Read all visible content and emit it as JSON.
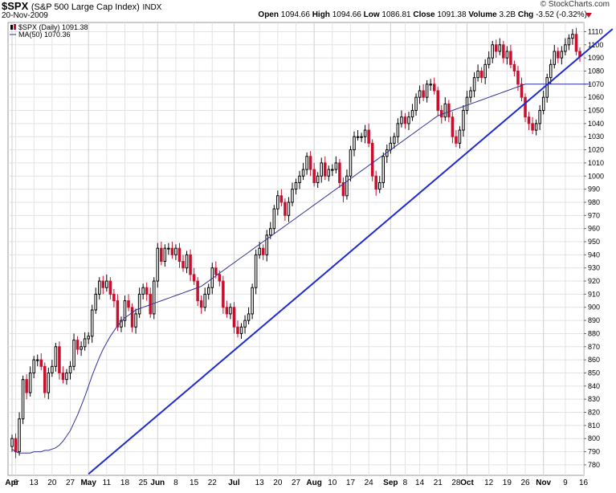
{
  "header": {
    "symbol": "$SPX",
    "description": "(S&P 500 Large Cap Index)",
    "exchange": "INDX",
    "date": "20-Nov-2009",
    "brand": "© StockCharts.com",
    "open_label": "Open",
    "open": "1094.66",
    "high_label": "High",
    "high": "1094.66",
    "low_label": "Low",
    "low": "1086.81",
    "close_label": "Close",
    "close": "1091.38",
    "volume_label": "Volume",
    "volume": "3.2B",
    "chg_label": "Chg",
    "chg": "-3.52 (-0.32%)"
  },
  "colors": {
    "up": "#000000",
    "down": "#c8102e",
    "ma": "#333399",
    "trend": "#1f2bd1",
    "grid": "#e3e3e3"
  },
  "chart_data": {
    "type": "candlestick",
    "legend": [
      {
        "label": "$SPX (Daily) 1091.38",
        "icon": "candle-icon"
      },
      {
        "label": "MA(50) 1070.36",
        "icon": "line-icon"
      }
    ],
    "ylim": [
      772,
      1117
    ],
    "y_ticks": [
      780,
      790,
      800,
      810,
      820,
      830,
      840,
      850,
      860,
      870,
      880,
      890,
      900,
      910,
      920,
      930,
      940,
      950,
      960,
      970,
      980,
      990,
      1000,
      1010,
      1020,
      1030,
      1040,
      1050,
      1060,
      1070,
      1080,
      1090,
      1100,
      1110
    ],
    "x_ticks": [
      {
        "label": "Apr",
        "i": 0,
        "bold": true
      },
      {
        "label": "6",
        "i": 1
      },
      {
        "label": "13",
        "i": 6
      },
      {
        "label": "20",
        "i": 11
      },
      {
        "label": "27",
        "i": 16
      },
      {
        "label": "May",
        "i": 21,
        "bold": true
      },
      {
        "label": "11",
        "i": 26
      },
      {
        "label": "18",
        "i": 31
      },
      {
        "label": "25",
        "i": 36
      },
      {
        "label": "Jun",
        "i": 40,
        "bold": true
      },
      {
        "label": "8",
        "i": 45
      },
      {
        "label": "15",
        "i": 50
      },
      {
        "label": "22",
        "i": 55
      },
      {
        "label": "Jul",
        "i": 61,
        "bold": true
      },
      {
        "label": "13",
        "i": 68
      },
      {
        "label": "20",
        "i": 73
      },
      {
        "label": "27",
        "i": 78
      },
      {
        "label": "Aug",
        "i": 83,
        "bold": true
      },
      {
        "label": "10",
        "i": 88
      },
      {
        "label": "17",
        "i": 93
      },
      {
        "label": "24",
        "i": 98
      },
      {
        "label": "Sep",
        "i": 104,
        "bold": true
      },
      {
        "label": "8",
        "i": 108
      },
      {
        "label": "14",
        "i": 112
      },
      {
        "label": "21",
        "i": 117
      },
      {
        "label": "28",
        "i": 122
      },
      {
        "label": "Oct",
        "i": 125,
        "bold": true
      },
      {
        "label": "12",
        "i": 131
      },
      {
        "label": "19",
        "i": 136
      },
      {
        "label": "26",
        "i": 141
      },
      {
        "label": "Nov",
        "i": 146,
        "bold": true
      },
      {
        "label": "9",
        "i": 152
      },
      {
        "label": "16",
        "i": 157
      }
    ],
    "close": [
      800,
      790,
      815,
      845,
      835,
      850,
      860,
      860,
      855,
      835,
      850,
      855,
      870,
      850,
      845,
      850,
      855,
      875,
      868,
      870,
      876,
      878,
      898,
      910,
      920,
      915,
      920,
      910,
      905,
      885,
      890,
      905,
      900,
      885,
      895,
      910,
      915,
      910,
      895,
      920,
      945,
      935,
      945,
      945,
      940,
      945,
      935,
      930,
      940,
      925,
      920,
      905,
      900,
      910,
      915,
      930,
      925,
      920,
      900,
      895,
      900,
      885,
      880,
      885,
      890,
      895,
      915,
      940,
      945,
      940,
      955,
      960,
      975,
      985,
      980,
      970,
      980,
      990,
      995,
      1000,
      1005,
      1015,
      1005,
      995,
      1000,
      1010,
      1000,
      1005,
      1005,
      1010,
      995,
      985,
      1000,
      1020,
      1030,
      1030,
      1030,
      1035,
      1025,
      1000,
      990,
      995,
      1015,
      1020,
      1025,
      1030,
      1040,
      1045,
      1040,
      1045,
      1050,
      1060,
      1065,
      1060,
      1070,
      1070,
      1065,
      1050,
      1045,
      1055,
      1045,
      1030,
      1025,
      1035,
      1050,
      1060,
      1065,
      1075,
      1080,
      1075,
      1085,
      1090,
      1100,
      1095,
      1100,
      1090,
      1095,
      1085,
      1080,
      1070,
      1060,
      1045,
      1040,
      1035,
      1040,
      1050,
      1060,
      1075,
      1085,
      1095,
      1090,
      1095,
      1100,
      1105,
      1108,
      1095,
      1091
    ],
    "ma50": [
      792,
      790,
      789,
      789,
      789,
      789,
      790,
      790,
      790,
      791,
      791,
      792,
      793,
      795,
      798,
      802,
      806,
      812,
      818,
      825,
      832,
      840,
      848,
      855,
      862,
      868,
      873,
      878,
      882,
      886,
      889,
      892,
      894,
      896,
      898,
      899,
      900,
      901,
      902,
      903,
      904,
      905,
      906,
      907,
      908,
      909,
      910,
      911,
      912,
      913,
      914,
      915,
      916,
      918,
      920,
      922,
      924,
      926,
      928,
      930,
      932,
      934,
      936,
      938,
      940,
      942,
      944,
      946,
      948,
      950,
      952,
      954,
      956,
      958,
      960,
      962,
      964,
      966,
      968,
      970,
      972,
      974,
      976,
      978,
      980,
      982,
      984,
      986,
      988,
      990,
      992,
      994,
      996,
      998,
      1000,
      1002,
      1004,
      1006,
      1008,
      1010,
      1012,
      1014,
      1016,
      1018,
      1020,
      1022,
      1024,
      1026,
      1028,
      1030,
      1032,
      1034,
      1036,
      1038,
      1040,
      1042,
      1044,
      1046,
      1047,
      1048,
      1049,
      1050,
      1051,
      1052,
      1053,
      1054,
      1055,
      1056,
      1057,
      1058,
      1059,
      1060,
      1061,
      1062,
      1063,
      1064,
      1065,
      1066,
      1067,
      1068,
      1069,
      1070,
      1070,
      1070,
      1070,
      1070,
      1070,
      1070,
      1070,
      1070,
      1070,
      1070,
      1070,
      1070,
      1070,
      1070,
      1070,
      1070,
      1070,
      1070
    ],
    "trendlines": [
      {
        "x0": 21,
        "y0": 773,
        "x1": 165,
        "y1": 1112,
        "label": ""
      }
    ]
  }
}
